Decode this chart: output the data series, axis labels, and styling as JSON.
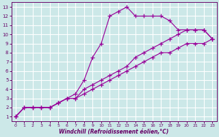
{
  "xlabel": "Windchill (Refroidissement éolien,°C)",
  "bg_color": "#cce8e8",
  "grid_color": "#ffffff",
  "line_color": "#990099",
  "tick_color": "#660066",
  "xlim": [
    -0.5,
    23.5
  ],
  "ylim": [
    0.5,
    13.5
  ],
  "xticks": [
    0,
    1,
    2,
    3,
    4,
    5,
    6,
    7,
    8,
    9,
    10,
    11,
    12,
    13,
    14,
    15,
    16,
    17,
    18,
    19,
    20,
    21,
    22,
    23
  ],
  "yticks": [
    1,
    2,
    3,
    4,
    5,
    6,
    7,
    8,
    9,
    10,
    11,
    12,
    13
  ],
  "line1_x": [
    0,
    1,
    2,
    3,
    4,
    5,
    6,
    7,
    8,
    9,
    10,
    11,
    12,
    13,
    14,
    15,
    16,
    17,
    18,
    19,
    20,
    21,
    22,
    23
  ],
  "line1_y": [
    1.0,
    2.0,
    2.0,
    2.0,
    2.0,
    2.5,
    3.0,
    3.0,
    3.5,
    4.0,
    4.5,
    5.0,
    5.5,
    6.0,
    6.5,
    7.0,
    7.5,
    8.0,
    8.0,
    8.5,
    9.0,
    9.0,
    9.0,
    9.5
  ],
  "line2_x": [
    0,
    1,
    2,
    3,
    4,
    5,
    6,
    7,
    8,
    9,
    10,
    11,
    12,
    13,
    14,
    15,
    16,
    17,
    18,
    19,
    20,
    21,
    22,
    23
  ],
  "line2_y": [
    1.0,
    2.0,
    2.0,
    2.0,
    2.0,
    2.5,
    3.0,
    3.0,
    4.0,
    4.5,
    5.0,
    5.5,
    6.0,
    6.5,
    7.5,
    8.0,
    8.5,
    9.0,
    9.5,
    10.0,
    10.5,
    10.5,
    10.5,
    9.5
  ],
  "line3_x": [
    0,
    1,
    2,
    3,
    4,
    5,
    6,
    7,
    8,
    9,
    10,
    11,
    12,
    13,
    14,
    15,
    16,
    17,
    18,
    19,
    20,
    21,
    22,
    23
  ],
  "line3_y": [
    1.0,
    2.0,
    2.0,
    2.0,
    2.0,
    2.5,
    3.0,
    3.5,
    5.0,
    7.5,
    9.0,
    12.0,
    12.5,
    13.0,
    12.0,
    12.0,
    12.0,
    12.0,
    11.5,
    10.5,
    10.5,
    10.5,
    10.5,
    9.5
  ]
}
